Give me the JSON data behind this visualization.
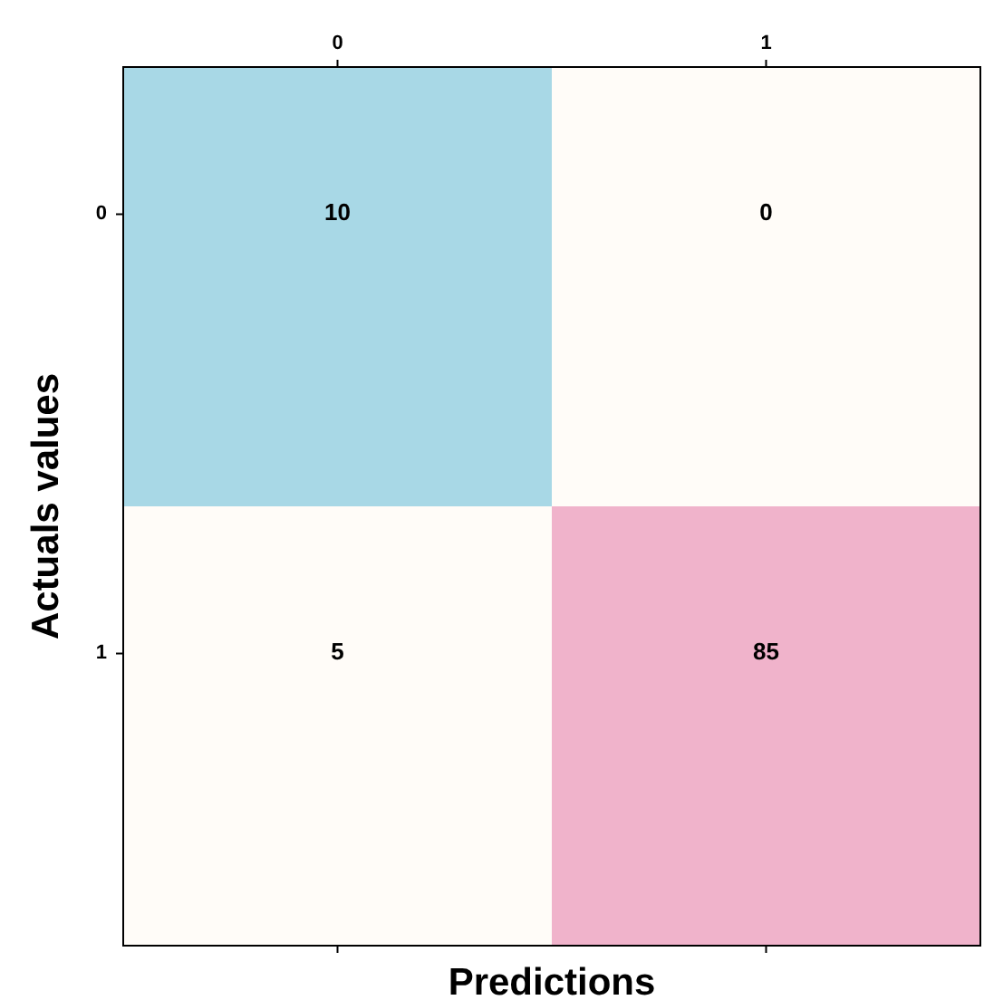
{
  "chart_data": {
    "type": "heatmap",
    "xlabel": "Predictions",
    "ylabel": "Actuals values",
    "categories": [
      "0",
      "1"
    ],
    "y_categories": [
      "0",
      "1"
    ],
    "cells": [
      [
        10,
        0
      ],
      [
        5,
        85
      ]
    ],
    "colors": [
      [
        "#a8d8e6",
        "#fffcf8"
      ],
      [
        "#fffcf8",
        "#f0b3cb"
      ]
    ],
    "data_labels": true
  }
}
